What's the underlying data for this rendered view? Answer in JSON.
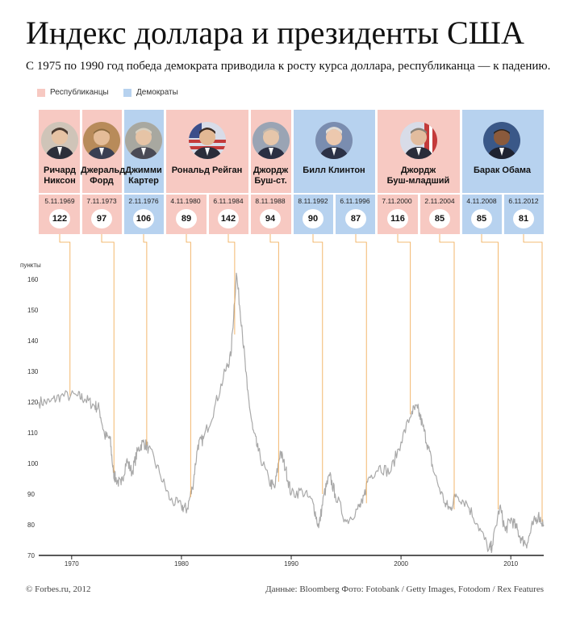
{
  "title": "Индекс доллара и президенты США",
  "subtitle": "С 1975 по 1990 год победа демократа приводила к росту курса доллара, республиканца — к падению.",
  "legend": {
    "republicans": "Республиканцы",
    "democrats": "Демократы"
  },
  "colors": {
    "republican": "#f7c9c2",
    "democrat": "#b7d2ef",
    "series": "#a9a9a9",
    "connector": "#f0a64a"
  },
  "presidents": [
    {
      "name": "Ричард Никсон",
      "line1": "Ричард",
      "line2": "Никсон",
      "party": "rep"
    },
    {
      "name": "Джеральд Форд",
      "line1": "Джеральд",
      "line2": "Форд",
      "party": "rep"
    },
    {
      "name": "Джимми Картер",
      "line1": "Джимми",
      "line2": "Картер",
      "party": "dem"
    },
    {
      "name": "Рональд Рейган",
      "line1": "Рональд Рейган",
      "line2": "",
      "party": "rep"
    },
    {
      "name": "Джордж Буш-ст.",
      "line1": "Джордж",
      "line2": "Буш-ст.",
      "party": "rep"
    },
    {
      "name": "Билл Клинтон",
      "line1": "Билл Клинтон",
      "line2": "",
      "party": "dem"
    },
    {
      "name": "Джордж Буш-младший",
      "line1": "Джордж",
      "line2": "Буш-младший",
      "party": "rep"
    },
    {
      "name": "Барак Обама",
      "line1": "Барак Обама",
      "line2": "",
      "party": "dem"
    }
  ],
  "elections": [
    {
      "date": "5.11.1969",
      "value": "122"
    },
    {
      "date": "7.11.1973",
      "value": "97"
    },
    {
      "date": "2.11.1976",
      "value": "106"
    },
    {
      "date": "4.11.1980",
      "value": "89"
    },
    {
      "date": "6.11.1984",
      "value": "142"
    },
    {
      "date": "8.11.1988",
      "value": "94"
    },
    {
      "date": "8.11.1992",
      "value": "90"
    },
    {
      "date": "6.11.1996",
      "value": "87"
    },
    {
      "date": "7.11.2000",
      "value": "116"
    },
    {
      "date": "2.11.2004",
      "value": "85"
    },
    {
      "date": "4.11.2008",
      "value": "85"
    },
    {
      "date": "6.11.2012",
      "value": "81"
    }
  ],
  "footer": {
    "copyright": "© Forbes.ru, 2012",
    "sources": "Данные: Bloomberg   Фото:  Fotobank / Getty Images, Fotodom / Rex Features"
  },
  "chart_data": {
    "type": "line",
    "ylabel": "пункты",
    "ylim": [
      70,
      165
    ],
    "xlim": [
      1967,
      2013
    ],
    "yticks": [
      70,
      80,
      90,
      100,
      110,
      120,
      130,
      140,
      150,
      160
    ],
    "xticks": [
      1970,
      1980,
      1990,
      2000,
      2010
    ],
    "series": [
      {
        "values": [
          [
            1967.0,
            120
          ],
          [
            1968.0,
            120
          ],
          [
            1969.0,
            122
          ],
          [
            1970.5,
            122
          ],
          [
            1971.2,
            121
          ],
          [
            1972.0,
            119
          ],
          [
            1972.5,
            118
          ],
          [
            1973.0,
            109
          ],
          [
            1973.5,
            108
          ],
          [
            1973.8,
            97
          ],
          [
            1974.0,
            95
          ],
          [
            1974.5,
            93
          ],
          [
            1975.0,
            101
          ],
          [
            1975.5,
            97
          ],
          [
            1976.0,
            104
          ],
          [
            1976.5,
            107
          ],
          [
            1977.0,
            105
          ],
          [
            1978.0,
            97
          ],
          [
            1979.0,
            88
          ],
          [
            1980.0,
            86
          ],
          [
            1980.5,
            85
          ],
          [
            1981.0,
            92
          ],
          [
            1981.5,
            106
          ],
          [
            1982.0,
            108
          ],
          [
            1983.0,
            118
          ],
          [
            1984.0,
            130
          ],
          [
            1984.5,
            135
          ],
          [
            1985.0,
            162
          ],
          [
            1985.5,
            145
          ],
          [
            1986.0,
            124
          ],
          [
            1986.5,
            111
          ],
          [
            1987.0,
            104
          ],
          [
            1988.0,
            94
          ],
          [
            1988.5,
            92
          ],
          [
            1989.0,
            104
          ],
          [
            1989.5,
            98
          ],
          [
            1990.0,
            90
          ],
          [
            1991.0,
            91
          ],
          [
            1992.0,
            87
          ],
          [
            1992.5,
            79
          ],
          [
            1993.0,
            90
          ],
          [
            1993.5,
            96
          ],
          [
            1994.0,
            90
          ],
          [
            1995.0,
            81
          ],
          [
            1996.0,
            85
          ],
          [
            1996.5,
            87
          ],
          [
            1997.0,
            95
          ],
          [
            1998.0,
            99
          ],
          [
            1999.0,
            97
          ],
          [
            2000.0,
            107
          ],
          [
            2001.0,
            117
          ],
          [
            2001.5,
            118
          ],
          [
            2002.0,
            112
          ],
          [
            2002.5,
            105
          ],
          [
            2003.0,
            97
          ],
          [
            2004.0,
            87
          ],
          [
            2004.5,
            85
          ],
          [
            2005.0,
            90
          ],
          [
            2006.0,
            87
          ],
          [
            2007.0,
            80
          ],
          [
            2008.0,
            72
          ],
          [
            2008.3,
            73
          ],
          [
            2009.0,
            86
          ],
          [
            2009.5,
            78
          ],
          [
            2010.0,
            82
          ],
          [
            2010.5,
            79
          ],
          [
            2011.0,
            75
          ],
          [
            2011.5,
            74
          ],
          [
            2012.0,
            80
          ],
          [
            2012.5,
            83
          ],
          [
            2013.0,
            80
          ]
        ]
      }
    ]
  }
}
